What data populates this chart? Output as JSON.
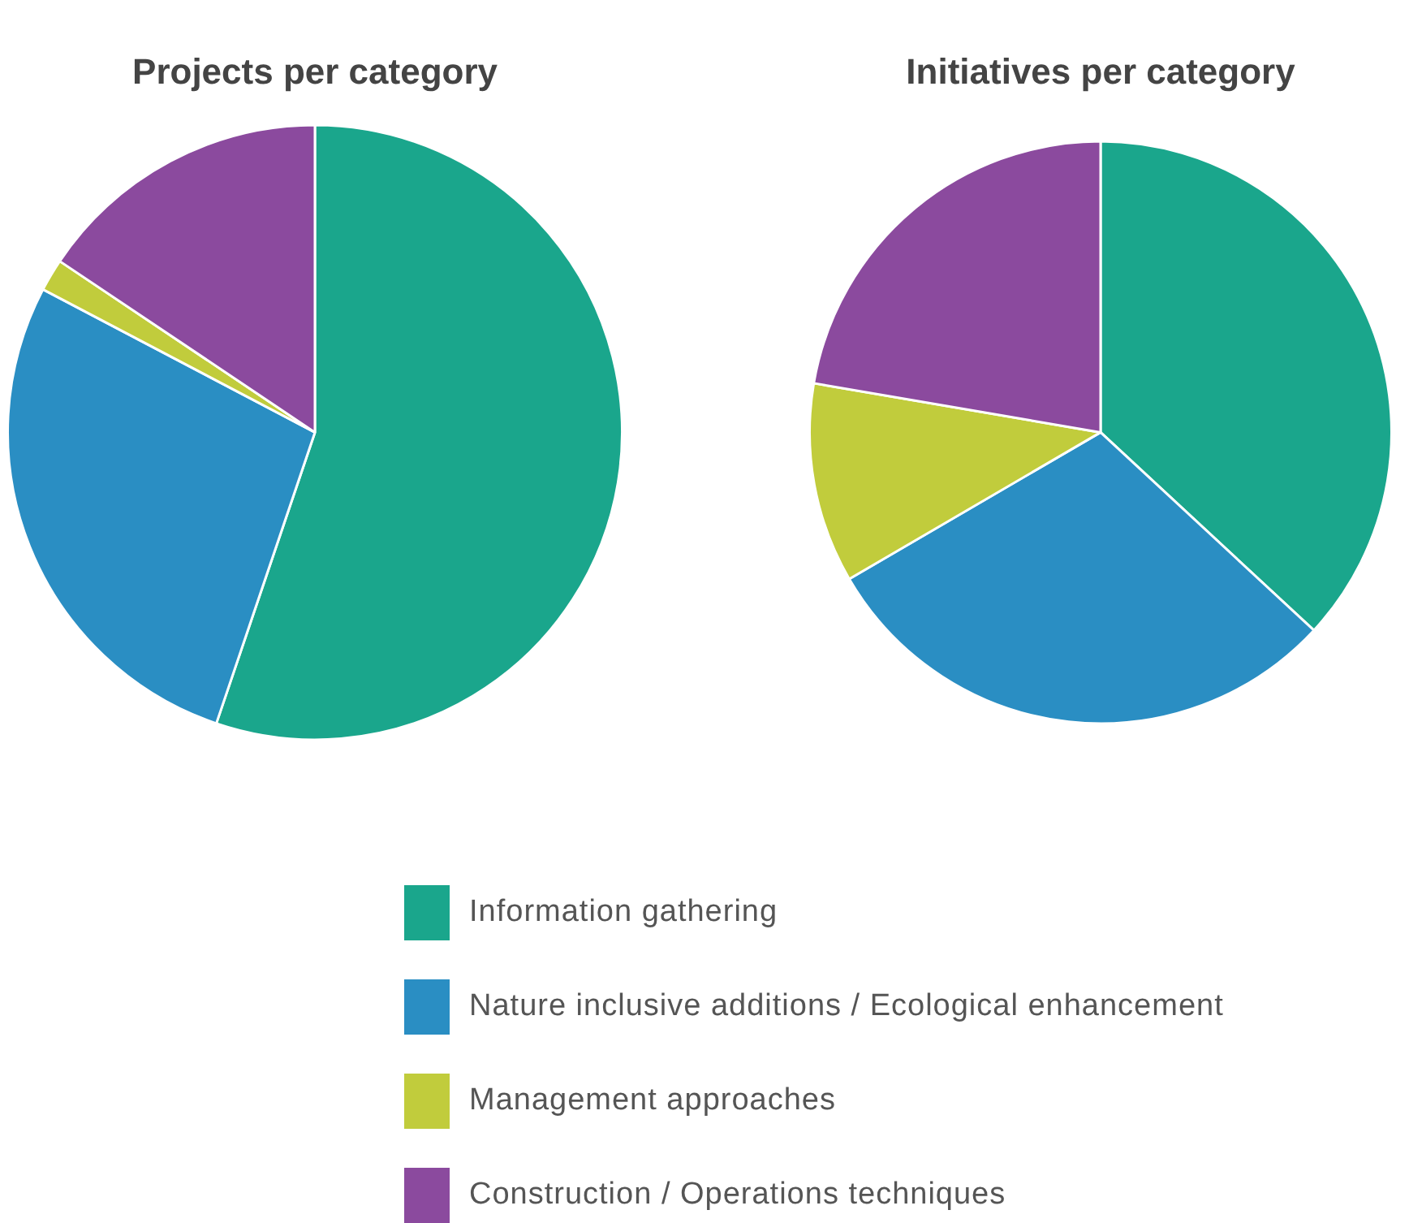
{
  "chart_data": [
    {
      "type": "pie",
      "title": "Projects per category",
      "categories": [
        "Information gathering",
        "Nature inclusive additions / Ecological enhancement",
        "Management approaches",
        "Construction / Operations techniques"
      ],
      "values": [
        55.2,
        27.5,
        1.7,
        15.6
      ],
      "colors": [
        "#1aa68c",
        "#2a8ec3",
        "#c1cc3c",
        "#8b4a9e"
      ],
      "legend": "bottom"
    },
    {
      "type": "pie",
      "title": "Initiatives per category",
      "categories": [
        null,
        null,
        null,
        null
      ],
      "values": [
        36.9,
        29.7,
        11.1,
        22.3
      ],
      "colors": [
        "#1aa68c",
        "#2a8ec3",
        "#c1cc3c",
        "#8b4a9e"
      ]
    }
  ]
}
